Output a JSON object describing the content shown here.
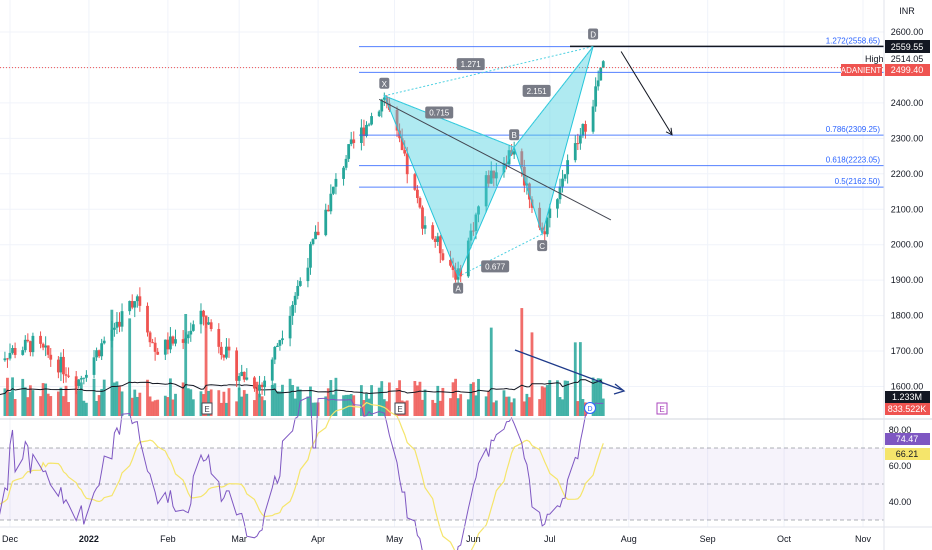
{
  "symbol": "ADANIENT",
  "currency": "INR",
  "chart_data": [
    {
      "type": "candlestick",
      "panel": "price",
      "y_axis": {
        "ticks": [
          2600,
          2500,
          2400,
          2300,
          2200,
          2100,
          2000,
          1900,
          1800,
          1700,
          1600
        ],
        "tick_labels": [
          "2600.00",
          "2500.00",
          "2400.00",
          "2300.00",
          "2200.00",
          "2100.00",
          "2000.00",
          "1900.00",
          "1800.00",
          "1700.00",
          "1600.00"
        ],
        "ylim": [
          1510,
          2640
        ]
      },
      "x_axis": {
        "tick_labels": [
          "Dec",
          "2022",
          "Feb",
          "Mar",
          "Apr",
          "May",
          "Jun",
          "Jul",
          "Aug",
          "Sep",
          "Oct",
          "Nov"
        ]
      },
      "price_labels": {
        "high_marker": {
          "value": "2559.55"
        },
        "high_label": {
          "text": "High",
          "value": "2514.05"
        },
        "last_label": {
          "symbol": "ADANIENT",
          "value": "2499.40"
        }
      },
      "fib_levels": [
        {
          "label": "1.272(2558.65)",
          "value": 2558.65
        },
        {
          "label": "1.",
          "value": 2486
        },
        {
          "label": "0.786(2309.25)",
          "value": 2309.25
        },
        {
          "label": "0.618(2223.05)",
          "value": 2223.05
        },
        {
          "label": "0.5(2162.50)",
          "value": 2162.5
        }
      ],
      "harmonic_pattern": {
        "name": "bat",
        "points": [
          {
            "label": "X",
            "date": "2022-04-27",
            "price": 2420
          },
          {
            "label": "A",
            "date": "2022-05-26",
            "price": 1910
          },
          {
            "label": "B",
            "date": "2022-06-17",
            "price": 2275
          },
          {
            "label": "C",
            "date": "2022-06-28",
            "price": 2030
          },
          {
            "label": "D",
            "date": "2022-07-18",
            "price": 2559
          }
        ],
        "ratios": [
          "0.715",
          "0.677",
          "2.151",
          "1.271"
        ]
      },
      "trendline": {
        "from": {
          "date": "2022-04-25",
          "price": 2410
        },
        "to": {
          "date": "2022-07-25",
          "price": 2070
        }
      },
      "projection_arrow": {
        "from": {
          "date": "2022-07-29",
          "price": 2545
        },
        "to": {
          "date": "2022-08-18",
          "price": 2310
        }
      },
      "earnings_markers": [
        "E",
        "E",
        "E"
      ],
      "dividend_marker": "D"
    },
    {
      "type": "bar",
      "panel": "volume",
      "last_value_label": "1.233M",
      "ma_value_label": "833.522K",
      "volume_trend_arrow": true
    },
    {
      "type": "line",
      "panel": "rsi",
      "y_axis": {
        "ticks": [
          80,
          60,
          40
        ],
        "tick_labels": [
          "80.00",
          "60.00",
          "40.00"
        ],
        "ylim": [
          28,
          88
        ],
        "bands": [
          70,
          50,
          30
        ]
      },
      "series": [
        {
          "role": "rsi",
          "last_value": "74.47",
          "color": "#7e57c2"
        },
        {
          "role": "rsi_ma",
          "last_value": "66.21",
          "color": "#f5e56b"
        }
      ]
    }
  ],
  "colors": {
    "up": "#26a69a",
    "down": "#ef5350",
    "fib": "#2962ff",
    "pattern_fill": "#4dd0e1",
    "dark": "#131722"
  }
}
